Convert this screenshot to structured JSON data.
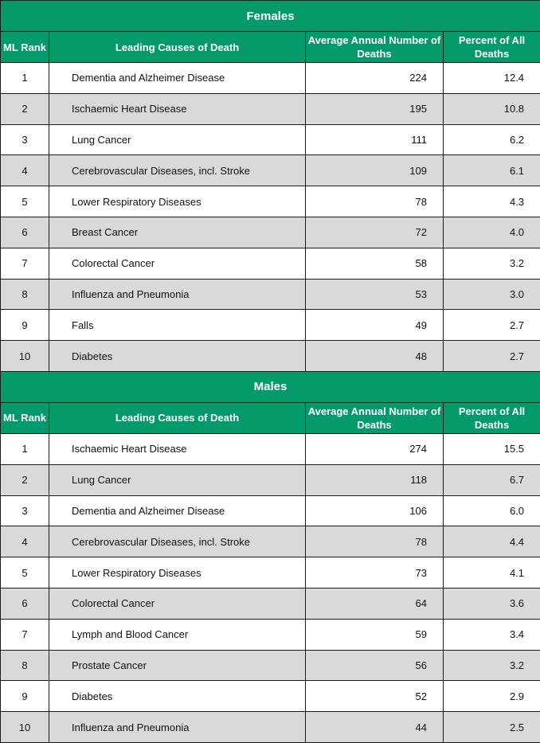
{
  "columns": {
    "rank": "ML Rank",
    "cause": "Leading Causes of Death",
    "deaths": "Average Annual Number of Deaths",
    "percent": "Percent of All Deaths"
  },
  "sections": [
    {
      "title": "Females",
      "rows": [
        {
          "rank": "1",
          "cause": "Dementia and Alzheimer Disease",
          "deaths": "224",
          "percent": "12.4"
        },
        {
          "rank": "2",
          "cause": "Ischaemic Heart Disease",
          "deaths": "195",
          "percent": "10.8"
        },
        {
          "rank": "3",
          "cause": "Lung Cancer",
          "deaths": "111",
          "percent": "6.2"
        },
        {
          "rank": "4",
          "cause": "Cerebrovascular Diseases, incl. Stroke",
          "deaths": "109",
          "percent": "6.1"
        },
        {
          "rank": "5",
          "cause": "Lower Respiratory Diseases",
          "deaths": "78",
          "percent": "4.3"
        },
        {
          "rank": "6",
          "cause": "Breast Cancer",
          "deaths": "72",
          "percent": "4.0"
        },
        {
          "rank": "7",
          "cause": "Colorectal Cancer",
          "deaths": "58",
          "percent": "3.2"
        },
        {
          "rank": "8",
          "cause": "Influenza and Pneumonia",
          "deaths": "53",
          "percent": "3.0"
        },
        {
          "rank": "9",
          "cause": "Falls",
          "deaths": "49",
          "percent": "2.7"
        },
        {
          "rank": "10",
          "cause": "Diabetes",
          "deaths": "48",
          "percent": "2.7"
        }
      ]
    },
    {
      "title": "Males",
      "rows": [
        {
          "rank": "1",
          "cause": "Ischaemic Heart Disease",
          "deaths": "274",
          "percent": "15.5"
        },
        {
          "rank": "2",
          "cause": "Lung Cancer",
          "deaths": "118",
          "percent": "6.7"
        },
        {
          "rank": "3",
          "cause": "Dementia and Alzheimer Disease",
          "deaths": "106",
          "percent": "6.0"
        },
        {
          "rank": "4",
          "cause": "Cerebrovascular Diseases, incl. Stroke",
          "deaths": "78",
          "percent": "4.4"
        },
        {
          "rank": "5",
          "cause": "Lower Respiratory Diseases",
          "deaths": "73",
          "percent": "4.1"
        },
        {
          "rank": "6",
          "cause": "Colorectal Cancer",
          "deaths": "64",
          "percent": "3.6"
        },
        {
          "rank": "7",
          "cause": "Lymph and Blood Cancer",
          "deaths": "59",
          "percent": "3.4"
        },
        {
          "rank": "8",
          "cause": "Prostate Cancer",
          "deaths": "56",
          "percent": "3.2"
        },
        {
          "rank": "9",
          "cause": "Diabetes",
          "deaths": "52",
          "percent": "2.9"
        },
        {
          "rank": "10",
          "cause": "Influenza and Pneumonia",
          "deaths": "44",
          "percent": "2.5"
        }
      ]
    }
  ],
  "colors": {
    "header_green": "#049a6c",
    "alt_row_gray": "#d9d9d9",
    "border": "#1a1a1a"
  }
}
